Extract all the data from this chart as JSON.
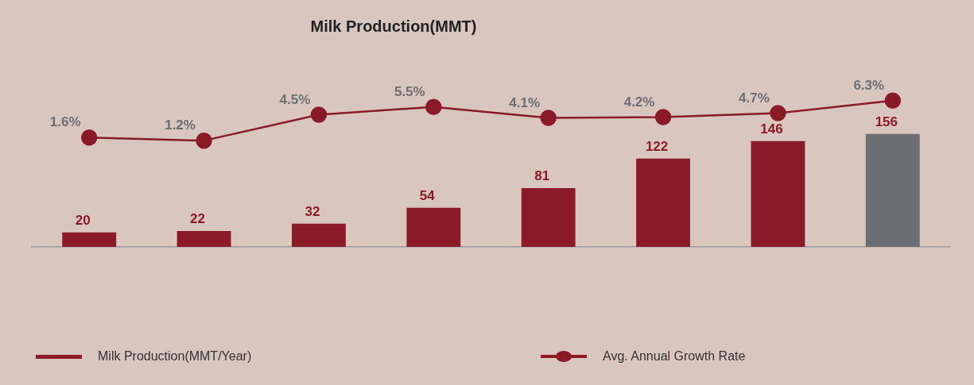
{
  "chart_data": [
    {
      "type": "bar",
      "title": "Milk Production(MMT)",
      "categories": [
        null,
        null,
        null,
        null,
        null,
        null,
        null,
        null
      ],
      "series": [
        {
          "name": "Milk Production(MMT/Year)",
          "color": "#8b1a28",
          "colors": [
            "#8b1a28",
            "#8b1a28",
            "#8b1a28",
            "#8b1a28",
            "#8b1a28",
            "#8b1a28",
            "#8b1a28",
            "#6d6e71"
          ],
          "values": [
            20,
            22,
            32,
            54,
            81,
            122,
            146,
            156
          ]
        }
      ],
      "data_labels": true,
      "tick_labels": false,
      "grid": false,
      "legend": "bottom"
    },
    {
      "type": "line",
      "categories": [
        null,
        null,
        null,
        null,
        null,
        null,
        null,
        null
      ],
      "series": [
        {
          "name": "Avg. Annual Growth Rate",
          "color": "#8b1a28",
          "values": [
            1.6,
            1.2,
            4.5,
            5.5,
            4.1,
            4.2,
            4.7,
            6.3
          ],
          "value_labels": [
            "1.6%",
            "1.2%",
            "4.5%",
            "5.5%",
            "4.1%",
            "4.2%",
            "4.7%",
            "6.3%"
          ]
        }
      ],
      "tick_labels": false,
      "grid": false,
      "legend": "bottom",
      "marker": "circle",
      "line_style": "solid"
    }
  ]
}
